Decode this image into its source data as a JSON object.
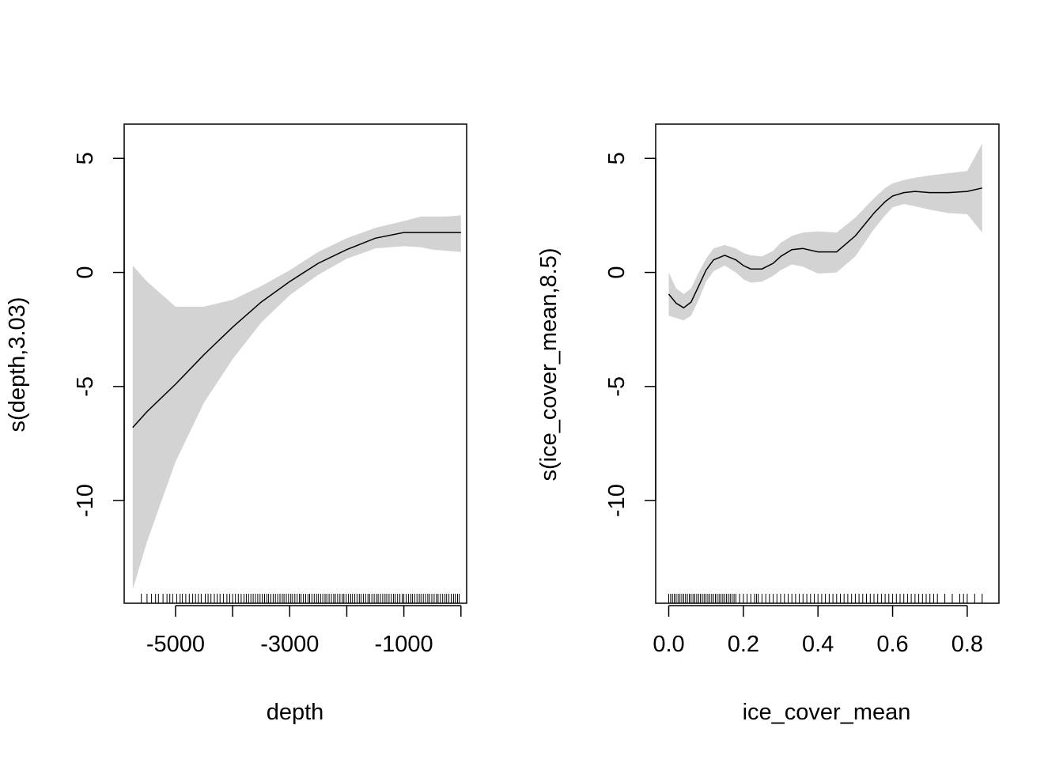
{
  "chart_data": [
    {
      "type": "area",
      "xlabel": "depth",
      "ylabel": "s(depth,3.03)",
      "xlim": [
        -5900,
        100
      ],
      "ylim": [
        -14.5,
        6.5
      ],
      "xticks": [
        {
          "value": -5000,
          "label": "-5000"
        },
        {
          "value": -4000,
          "label": ""
        },
        {
          "value": -3000,
          "label": "-3000"
        },
        {
          "value": -2000,
          "label": ""
        },
        {
          "value": -1000,
          "label": "-1000"
        },
        {
          "value": 0,
          "label": ""
        }
      ],
      "yticks": [
        {
          "value": 5,
          "label": "5"
        },
        {
          "value": 0,
          "label": "0"
        },
        {
          "value": -5,
          "label": "-5"
        },
        {
          "value": -10,
          "label": "-10"
        }
      ],
      "series": [
        {
          "x": [
            -5750,
            -5500,
            -5000,
            -4500,
            -4000,
            -3500,
            -3000,
            -2500,
            -2000,
            -1500,
            -1000,
            -700,
            -500,
            -250,
            0
          ],
          "fit": [
            -6.8,
            -6.1,
            -4.9,
            -3.6,
            -2.4,
            -1.3,
            -0.4,
            0.4,
            1.0,
            1.5,
            1.75,
            1.75,
            1.75,
            1.75,
            1.75
          ],
          "lower": [
            -13.9,
            -11.8,
            -8.3,
            -5.7,
            -3.8,
            -2.2,
            -1.0,
            -0.1,
            0.6,
            1.05,
            1.15,
            1.1,
            1.0,
            0.95,
            0.9
          ],
          "upper": [
            0.3,
            -0.4,
            -1.5,
            -1.5,
            -1.2,
            -0.6,
            0.1,
            0.9,
            1.5,
            1.95,
            2.25,
            2.45,
            2.45,
            2.45,
            2.5
          ]
        }
      ],
      "rug": [
        -5600,
        -5500,
        -5420,
        -5350,
        -5300,
        -5220,
        -5150,
        -5100,
        -5050,
        -4980,
        -4920,
        -4880,
        -4820,
        -4760,
        -4700,
        -4650,
        -4600,
        -4550,
        -4480,
        -4430,
        -4380,
        -4320,
        -4270,
        -4220,
        -4160,
        -4100,
        -4050,
        -4000,
        -3950,
        -3900,
        -3850,
        -3800,
        -3760,
        -3720,
        -3680,
        -3640,
        -3600,
        -3560,
        -3520,
        -3480,
        -3440,
        -3400,
        -3370,
        -3330,
        -3290,
        -3250,
        -3210,
        -3170,
        -3130,
        -3100,
        -3060,
        -3020,
        -2980,
        -2950,
        -2910,
        -2870,
        -2830,
        -2800,
        -2760,
        -2720,
        -2680,
        -2650,
        -2610,
        -2570,
        -2530,
        -2500,
        -2460,
        -2420,
        -2380,
        -2350,
        -2310,
        -2270,
        -2230,
        -2200,
        -2160,
        -2120,
        -2080,
        -2050,
        -2010,
        -1970,
        -1930,
        -1900,
        -1860,
        -1820,
        -1780,
        -1750,
        -1710,
        -1670,
        -1630,
        -1600,
        -1560,
        -1520,
        -1480,
        -1450,
        -1410,
        -1370,
        -1330,
        -1300,
        -1260,
        -1220,
        -1180,
        -1150,
        -1110,
        -1070,
        -1030,
        -1000,
        -960,
        -920,
        -880,
        -850,
        -810,
        -770,
        -730,
        -700,
        -660,
        -620,
        -580,
        -550,
        -510,
        -470,
        -430,
        -400,
        -360,
        -320,
        -280,
        -250,
        -210,
        -170,
        -130,
        -100,
        -60,
        -30
      ]
    },
    {
      "type": "area",
      "xlabel": "ice_cover_mean",
      "ylabel": "s(ice_cover_mean,8.5)",
      "xlim": [
        -0.035,
        0.885
      ],
      "ylim": [
        -14.5,
        6.5
      ],
      "xticks": [
        {
          "value": 0.0,
          "label": "0.0"
        },
        {
          "value": 0.2,
          "label": "0.2"
        },
        {
          "value": 0.4,
          "label": "0.4"
        },
        {
          "value": 0.6,
          "label": "0.6"
        },
        {
          "value": 0.8,
          "label": "0.8"
        }
      ],
      "yticks": [
        {
          "value": 5,
          "label": "5"
        },
        {
          "value": 0,
          "label": "0"
        },
        {
          "value": -5,
          "label": "-5"
        },
        {
          "value": -10,
          "label": "-10"
        }
      ],
      "series": [
        {
          "x": [
            0.0,
            0.02,
            0.04,
            0.06,
            0.08,
            0.1,
            0.12,
            0.15,
            0.18,
            0.2,
            0.22,
            0.25,
            0.28,
            0.3,
            0.33,
            0.36,
            0.4,
            0.45,
            0.5,
            0.55,
            0.58,
            0.6,
            0.63,
            0.66,
            0.7,
            0.75,
            0.8,
            0.84
          ],
          "fit": [
            -0.95,
            -1.35,
            -1.55,
            -1.3,
            -0.6,
            0.1,
            0.55,
            0.75,
            0.55,
            0.3,
            0.15,
            0.15,
            0.4,
            0.7,
            1.0,
            1.05,
            0.9,
            0.9,
            1.6,
            2.6,
            3.1,
            3.35,
            3.5,
            3.55,
            3.5,
            3.5,
            3.55,
            3.7
          ],
          "lower": [
            -1.9,
            -2.0,
            -2.1,
            -1.9,
            -1.2,
            -0.4,
            0.05,
            0.3,
            0.0,
            -0.3,
            -0.45,
            -0.4,
            -0.15,
            0.1,
            0.35,
            0.25,
            -0.05,
            0.0,
            0.7,
            1.9,
            2.5,
            2.85,
            3.0,
            2.9,
            2.75,
            2.6,
            2.55,
            1.75
          ],
          "upper": [
            0.0,
            -0.7,
            -0.95,
            -0.7,
            0.0,
            0.6,
            1.05,
            1.2,
            1.05,
            0.85,
            0.75,
            0.7,
            0.95,
            1.3,
            1.6,
            1.75,
            1.8,
            1.75,
            2.4,
            3.25,
            3.7,
            3.9,
            4.05,
            4.15,
            4.25,
            4.35,
            4.45,
            5.65
          ]
        }
      ],
      "rug": [
        0.0,
        0.005,
        0.01,
        0.015,
        0.02,
        0.025,
        0.03,
        0.035,
        0.04,
        0.045,
        0.05,
        0.055,
        0.06,
        0.065,
        0.07,
        0.075,
        0.08,
        0.085,
        0.09,
        0.095,
        0.1,
        0.105,
        0.11,
        0.115,
        0.12,
        0.125,
        0.13,
        0.135,
        0.14,
        0.145,
        0.15,
        0.155,
        0.16,
        0.165,
        0.17,
        0.175,
        0.18,
        0.19,
        0.2,
        0.21,
        0.22,
        0.23,
        0.235,
        0.24,
        0.25,
        0.26,
        0.27,
        0.28,
        0.29,
        0.3,
        0.31,
        0.32,
        0.33,
        0.34,
        0.35,
        0.36,
        0.37,
        0.38,
        0.39,
        0.4,
        0.41,
        0.42,
        0.43,
        0.44,
        0.45,
        0.46,
        0.47,
        0.48,
        0.49,
        0.5,
        0.51,
        0.52,
        0.53,
        0.54,
        0.55,
        0.56,
        0.57,
        0.58,
        0.59,
        0.6,
        0.61,
        0.62,
        0.63,
        0.64,
        0.65,
        0.66,
        0.67,
        0.68,
        0.69,
        0.7,
        0.71,
        0.72,
        0.74,
        0.76,
        0.78,
        0.79,
        0.8,
        0.82,
        0.84
      ]
    }
  ]
}
